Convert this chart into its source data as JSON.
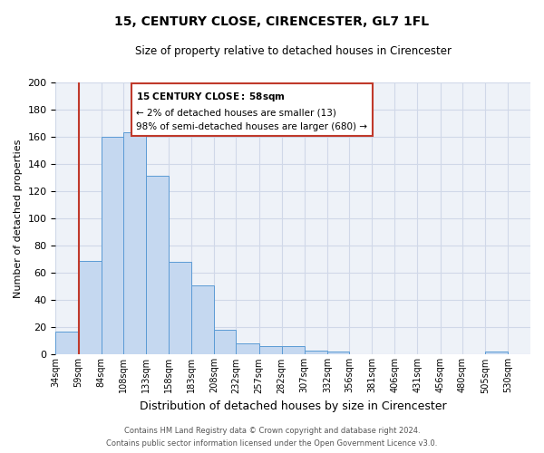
{
  "title": "15, CENTURY CLOSE, CIRENCESTER, GL7 1FL",
  "subtitle": "Size of property relative to detached houses in Cirencester",
  "xlabel": "Distribution of detached houses by size in Cirencester",
  "ylabel": "Number of detached properties",
  "bin_labels": [
    "34sqm",
    "59sqm",
    "84sqm",
    "108sqm",
    "133sqm",
    "158sqm",
    "183sqm",
    "208sqm",
    "232sqm",
    "257sqm",
    "282sqm",
    "307sqm",
    "332sqm",
    "356sqm",
    "381sqm",
    "406sqm",
    "431sqm",
    "456sqm",
    "480sqm",
    "505sqm",
    "530sqm"
  ],
  "bar_values": [
    17,
    69,
    160,
    163,
    131,
    68,
    51,
    18,
    8,
    6,
    6,
    3,
    2,
    0,
    0,
    0,
    0,
    0,
    0,
    2,
    0
  ],
  "bar_color": "#c5d8f0",
  "bar_edgecolor": "#5b9bd5",
  "ylim": [
    0,
    200
  ],
  "yticks": [
    0,
    20,
    40,
    60,
    80,
    100,
    120,
    140,
    160,
    180,
    200
  ],
  "property_line_color": "#c0392b",
  "annotation_title": "15 CENTURY CLOSE: 58sqm",
  "annotation_line1": "← 2% of detached houses are smaller (13)",
  "annotation_line2": "98% of semi-detached houses are larger (680) →",
  "annotation_box_color": "#ffffff",
  "annotation_box_edgecolor": "#c0392b",
  "grid_color": "#d0d8e8",
  "background_color": "#eef2f8",
  "footnote1": "Contains HM Land Registry data © Crown copyright and database right 2024.",
  "footnote2": "Contains public sector information licensed under the Open Government Licence v3.0.",
  "bin_edges": [
    34,
    59,
    84,
    108,
    133,
    158,
    183,
    208,
    232,
    257,
    282,
    307,
    332,
    356,
    381,
    406,
    431,
    456,
    480,
    505,
    530,
    555
  ]
}
